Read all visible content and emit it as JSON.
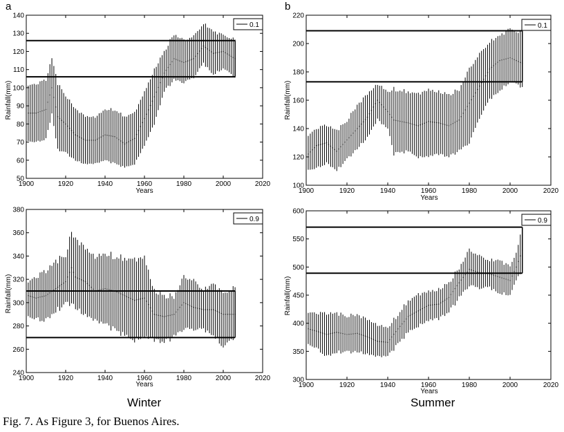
{
  "column_labels": {
    "left": "Winter",
    "right": "Summer"
  },
  "caption": "Fig. 7. As Figure 3, for Buenos Aires.",
  "chart_data": [
    {
      "id": "a",
      "panel_label": "a",
      "type": "line",
      "season": "Winter",
      "quantile": "0.1",
      "xlabel": "Years",
      "ylabel": "Rainfall(mm)",
      "xlim": [
        1900,
        2020
      ],
      "ylim": [
        50,
        140
      ],
      "xticks": [
        1900,
        1920,
        1940,
        1960,
        1980,
        2000,
        2020
      ],
      "yticks": [
        50,
        60,
        70,
        80,
        90,
        100,
        110,
        120,
        130,
        140
      ],
      "hlines": [
        106,
        126
      ],
      "hline_x_end": 2006,
      "legend": "0.1",
      "year_start": 1901,
      "year_end": 2006,
      "series": [
        {
          "name": "estimate",
          "x": [
            1901,
            1905,
            1910,
            1913,
            1916,
            1920,
            1925,
            1930,
            1935,
            1940,
            1945,
            1950,
            1955,
            1960,
            1965,
            1970,
            1975,
            1980,
            1985,
            1990,
            1995,
            2000,
            2006
          ],
          "values": [
            86,
            86,
            88,
            100,
            84,
            80,
            74,
            71,
            71,
            74,
            73,
            69,
            72,
            83,
            95,
            108,
            116,
            114,
            116,
            123,
            119,
            120,
            116
          ]
        },
        {
          "name": "lower",
          "x": [
            1901,
            1905,
            1910,
            1913,
            1916,
            1920,
            1925,
            1930,
            1935,
            1940,
            1945,
            1950,
            1955,
            1960,
            1965,
            1970,
            1975,
            1980,
            1985,
            1990,
            1995,
            2000,
            2006
          ],
          "values": [
            70,
            70,
            72,
            86,
            66,
            64,
            60,
            58,
            58,
            60,
            58,
            56,
            58,
            68,
            80,
            98,
            104,
            103,
            106,
            113,
            108,
            110,
            106
          ]
        },
        {
          "name": "upper",
          "x": [
            1901,
            1905,
            1910,
            1913,
            1916,
            1920,
            1925,
            1930,
            1935,
            1940,
            1945,
            1950,
            1955,
            1960,
            1965,
            1970,
            1975,
            1980,
            1985,
            1990,
            1995,
            2000,
            2006
          ],
          "values": [
            102,
            102,
            104,
            116,
            102,
            96,
            88,
            84,
            84,
            88,
            88,
            84,
            86,
            98,
            110,
            120,
            130,
            126,
            128,
            136,
            130,
            130,
            126
          ]
        }
      ]
    },
    {
      "id": "b",
      "panel_label": "b",
      "type": "line",
      "season": "Summer",
      "quantile": "0.1",
      "xlabel": "Years",
      "ylabel": "Rainfall(mm)",
      "xlim": [
        1900,
        2020
      ],
      "ylim": [
        100,
        220
      ],
      "xticks": [
        1900,
        1920,
        1940,
        1960,
        1980,
        2000,
        2020
      ],
      "yticks": [
        100,
        120,
        140,
        160,
        180,
        200,
        220
      ],
      "hlines": [
        173,
        209
      ],
      "hline_x_end": 2006,
      "legend": "0.1",
      "year_start": 1901,
      "year_end": 2006,
      "series": [
        {
          "name": "estimate",
          "x": [
            1901,
            1905,
            1910,
            1915,
            1920,
            1925,
            1930,
            1935,
            1940,
            1943,
            1950,
            1955,
            1960,
            1965,
            1970,
            1975,
            1980,
            1985,
            1990,
            1995,
            2000,
            2006
          ],
          "values": [
            122,
            128,
            130,
            124,
            132,
            140,
            148,
            160,
            152,
            146,
            144,
            142,
            145,
            144,
            142,
            146,
            158,
            170,
            182,
            188,
            190,
            186
          ]
        },
        {
          "name": "lower",
          "x": [
            1901,
            1905,
            1910,
            1915,
            1920,
            1925,
            1930,
            1935,
            1940,
            1943,
            1950,
            1955,
            1960,
            1965,
            1970,
            1975,
            1980,
            1985,
            1990,
            1995,
            2000,
            2006
          ],
          "values": [
            110,
            112,
            116,
            111,
            118,
            126,
            134,
            146,
            140,
            122,
            124,
            120,
            120,
            122,
            120,
            124,
            130,
            148,
            160,
            168,
            172,
            170
          ]
        },
        {
          "name": "upper",
          "x": [
            1901,
            1905,
            1910,
            1915,
            1920,
            1925,
            1930,
            1935,
            1940,
            1943,
            1950,
            1955,
            1960,
            1965,
            1970,
            1975,
            1980,
            1985,
            1990,
            1995,
            2000,
            2006
          ],
          "values": [
            136,
            140,
            142,
            138,
            146,
            156,
            164,
            172,
            166,
            168,
            166,
            164,
            168,
            166,
            164,
            168,
            182,
            192,
            202,
            204,
            212,
            206
          ]
        }
      ]
    },
    {
      "id": "c",
      "panel_label": "",
      "type": "line",
      "season": "Winter",
      "quantile": "0.9",
      "xlabel": "Years",
      "ylabel": "Rainfall(mm)",
      "xlim": [
        1900,
        2020
      ],
      "ylim": [
        240,
        380
      ],
      "xticks": [
        1900,
        1920,
        1940,
        1960,
        1980,
        2000,
        2020
      ],
      "yticks": [
        240,
        260,
        280,
        300,
        320,
        340,
        360,
        380
      ],
      "hlines": [
        270,
        310
      ],
      "hline_x_end": 2006,
      "legend": "0.9",
      "year_start": 1901,
      "year_end": 2006,
      "series": [
        {
          "name": "estimate",
          "x": [
            1901,
            1905,
            1910,
            1915,
            1920,
            1923,
            1925,
            1930,
            1935,
            1940,
            1945,
            1950,
            1955,
            1960,
            1965,
            1970,
            1975,
            1980,
            1985,
            1990,
            1995,
            2000,
            2006
          ],
          "values": [
            306,
            304,
            306,
            312,
            318,
            330,
            322,
            318,
            310,
            312,
            310,
            306,
            302,
            304,
            290,
            288,
            290,
            300,
            296,
            294,
            294,
            290,
            290
          ]
        },
        {
          "name": "lower",
          "x": [
            1901,
            1905,
            1910,
            1915,
            1920,
            1923,
            1925,
            1930,
            1935,
            1940,
            1945,
            1950,
            1955,
            1960,
            1965,
            1970,
            1975,
            1980,
            1985,
            1990,
            1995,
            2000,
            2006
          ],
          "values": [
            286,
            286,
            286,
            294,
            298,
            300,
            296,
            290,
            284,
            282,
            276,
            272,
            268,
            270,
            268,
            266,
            270,
            278,
            278,
            276,
            274,
            260,
            272
          ]
        },
        {
          "name": "upper",
          "x": [
            1901,
            1905,
            1910,
            1915,
            1920,
            1923,
            1925,
            1930,
            1935,
            1940,
            1945,
            1950,
            1955,
            1960,
            1965,
            1970,
            1975,
            1980,
            1985,
            1990,
            1995,
            2000,
            2006
          ],
          "values": [
            320,
            322,
            326,
            334,
            342,
            360,
            354,
            346,
            340,
            342,
            340,
            338,
            336,
            340,
            310,
            306,
            306,
            322,
            318,
            312,
            314,
            310,
            312
          ]
        }
      ]
    },
    {
      "id": "d",
      "panel_label": "",
      "type": "line",
      "season": "Summer",
      "quantile": "0.9",
      "xlabel": "Years",
      "ylabel": "Rainfall(mm)",
      "xlim": [
        1900,
        2020
      ],
      "ylim": [
        300,
        600
      ],
      "xticks": [
        1900,
        1920,
        1940,
        1960,
        1980,
        2000,
        2020
      ],
      "yticks": [
        300,
        350,
        400,
        450,
        500,
        550,
        600
      ],
      "hlines": [
        489,
        571
      ],
      "hline_x_end": 2006,
      "legend": "0.9",
      "year_start": 1901,
      "year_end": 2006,
      "series": [
        {
          "name": "estimate",
          "x": [
            1901,
            1905,
            1910,
            1915,
            1920,
            1925,
            1930,
            1935,
            1940,
            1945,
            1950,
            1955,
            1960,
            1965,
            1970,
            1975,
            1980,
            1985,
            1990,
            1995,
            2000,
            2003,
            2006
          ],
          "values": [
            390,
            386,
            380,
            384,
            380,
            382,
            376,
            368,
            366,
            390,
            412,
            422,
            432,
            434,
            446,
            472,
            496,
            490,
            488,
            482,
            476,
            500,
            530
          ]
        },
        {
          "name": "lower",
          "x": [
            1901,
            1905,
            1910,
            1915,
            1920,
            1925,
            1930,
            1935,
            1940,
            1945,
            1950,
            1955,
            1960,
            1965,
            1970,
            1975,
            1980,
            1985,
            1990,
            1995,
            2000,
            2003,
            2006
          ],
          "values": [
            360,
            356,
            342,
            350,
            348,
            350,
            346,
            340,
            342,
            362,
            384,
            396,
            404,
            408,
            420,
            444,
            468,
            464,
            462,
            456,
            448,
            474,
            500
          ]
        },
        {
          "name": "upper",
          "x": [
            1901,
            1905,
            1910,
            1915,
            1920,
            1925,
            1930,
            1935,
            1940,
            1945,
            1950,
            1955,
            1960,
            1965,
            1970,
            1975,
            1980,
            1985,
            1990,
            1995,
            2000,
            2003,
            2006
          ],
          "values": [
            422,
            418,
            416,
            416,
            414,
            414,
            406,
            398,
            392,
            416,
            440,
            450,
            458,
            460,
            472,
            500,
            530,
            518,
            514,
            508,
            504,
            528,
            566
          ]
        }
      ]
    }
  ]
}
